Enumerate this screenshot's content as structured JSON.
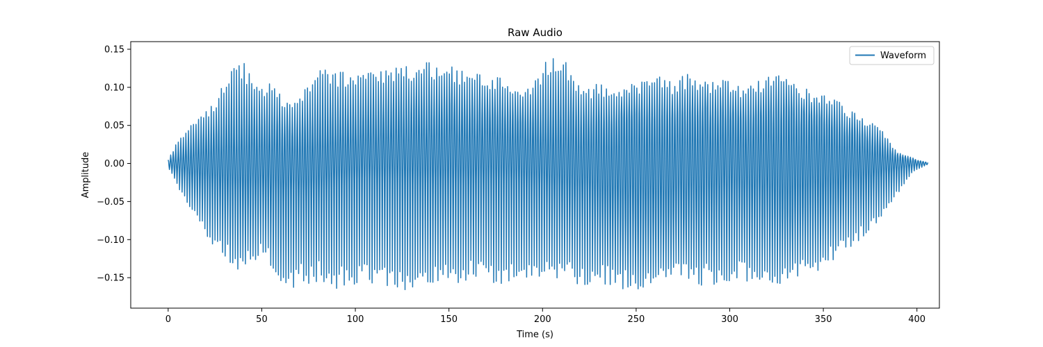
{
  "chart_data": {
    "type": "line",
    "title": "Raw Audio",
    "xlabel": "Time (s)",
    "ylabel": "Amplitude",
    "xlim": [
      -20,
      412
    ],
    "ylim": [
      -0.19,
      0.16
    ],
    "xticks": [
      0,
      50,
      100,
      150,
      200,
      250,
      300,
      350,
      400
    ],
    "xtick_labels": [
      "0",
      "50",
      "100",
      "150",
      "200",
      "250",
      "300",
      "350",
      "400"
    ],
    "yticks": [
      -0.15,
      -0.1,
      -0.05,
      0.0,
      0.05,
      0.1,
      0.15
    ],
    "ytick_labels": [
      "−0.15",
      "−0.10",
      "−0.05",
      "0.00",
      "0.05",
      "0.10",
      "0.15"
    ],
    "grid": false,
    "legend": {
      "position": "top-right",
      "entries": [
        "Waveform"
      ]
    },
    "series": [
      {
        "name": "Waveform",
        "color": "#1f77b4",
        "x_range": [
          0,
          406
        ],
        "envelope_outer": {
          "x": [
            0,
            5,
            10,
            15,
            20,
            25,
            30,
            35,
            40,
            45,
            50,
            55,
            60,
            65,
            70,
            80,
            90,
            100,
            110,
            120,
            130,
            140,
            150,
            160,
            170,
            180,
            190,
            200,
            205,
            210,
            220,
            230,
            240,
            250,
            260,
            270,
            280,
            290,
            300,
            310,
            320,
            330,
            340,
            350,
            360,
            370,
            380,
            385,
            390,
            395,
            400,
            406
          ],
          "upper": [
            0.005,
            0.03,
            0.045,
            0.06,
            0.07,
            0.08,
            0.11,
            0.13,
            0.135,
            0.11,
            0.1,
            0.11,
            0.09,
            0.08,
            0.09,
            0.125,
            0.12,
            0.125,
            0.12,
            0.125,
            0.13,
            0.135,
            0.13,
            0.12,
            0.12,
            0.11,
            0.09,
            0.13,
            0.14,
            0.145,
            0.1,
            0.105,
            0.1,
            0.11,
            0.115,
            0.11,
            0.12,
            0.11,
            0.11,
            0.1,
            0.12,
            0.115,
            0.1,
            0.09,
            0.08,
            0.06,
            0.05,
            0.03,
            0.015,
            0.01,
            0.005,
            0.001
          ],
          "lower": [
            -0.005,
            -0.03,
            -0.055,
            -0.075,
            -0.095,
            -0.11,
            -0.12,
            -0.14,
            -0.15,
            -0.13,
            -0.12,
            -0.14,
            -0.17,
            -0.175,
            -0.16,
            -0.155,
            -0.165,
            -0.16,
            -0.16,
            -0.17,
            -0.165,
            -0.16,
            -0.16,
            -0.155,
            -0.155,
            -0.16,
            -0.155,
            -0.15,
            -0.16,
            -0.155,
            -0.16,
            -0.16,
            -0.165,
            -0.17,
            -0.16,
            -0.155,
            -0.16,
            -0.16,
            -0.155,
            -0.155,
            -0.155,
            -0.16,
            -0.15,
            -0.14,
            -0.12,
            -0.1,
            -0.08,
            -0.06,
            -0.04,
            -0.02,
            -0.008,
            -0.001
          ]
        },
        "envelope_inner": {
          "x": [
            0,
            10,
            20,
            30,
            40,
            50,
            60,
            70,
            80,
            90,
            100,
            110,
            120,
            130,
            140,
            150,
            160,
            170,
            180,
            190,
            200,
            210,
            220,
            230,
            240,
            250,
            260,
            270,
            280,
            290,
            300,
            310,
            320,
            330,
            340,
            350,
            360,
            370,
            380,
            390,
            400,
            406
          ],
          "upper": [
            0.003,
            0.02,
            0.035,
            0.045,
            0.05,
            0.055,
            0.05,
            0.045,
            0.05,
            0.055,
            0.06,
            0.065,
            0.07,
            0.075,
            0.08,
            0.08,
            0.075,
            0.07,
            0.065,
            0.06,
            0.06,
            0.065,
            0.065,
            0.06,
            0.065,
            0.07,
            0.075,
            0.07,
            0.07,
            0.075,
            0.07,
            0.06,
            0.07,
            0.075,
            0.07,
            0.06,
            0.05,
            0.04,
            0.025,
            0.01,
            0.004,
            0.001
          ],
          "lower": [
            -0.003,
            -0.02,
            -0.035,
            -0.045,
            -0.05,
            -0.05,
            -0.055,
            -0.05,
            -0.045,
            -0.035,
            -0.03,
            -0.03,
            -0.03,
            -0.035,
            -0.035,
            -0.035,
            -0.035,
            -0.03,
            -0.03,
            -0.035,
            -0.04,
            -0.05,
            -0.055,
            -0.065,
            -0.075,
            -0.085,
            -0.08,
            -0.075,
            -0.07,
            -0.06,
            -0.055,
            -0.06,
            -0.07,
            -0.08,
            -0.065,
            -0.06,
            -0.045,
            -0.035,
            -0.025,
            -0.012,
            -0.004,
            -0.001
          ]
        }
      }
    ]
  }
}
